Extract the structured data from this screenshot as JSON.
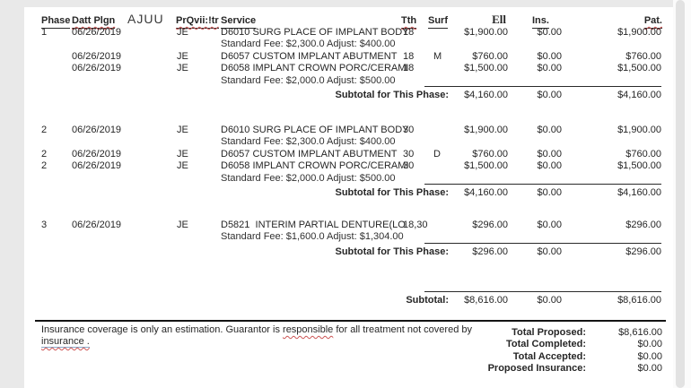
{
  "colors": {
    "page_background": "#ffffff",
    "canvas_background": "#e9e9e9",
    "spellcheck_squiggle": "#cc5555",
    "link_underline": "#8aa8c8"
  },
  "header": {
    "phase": "Phase",
    "date": "Datt Plgn",
    "extra": "AJUU",
    "provider": "PrQvii:!tr",
    "service": "Service",
    "tooth": "Tth",
    "surf": "Surf",
    "fee": "Ell",
    "ins": "Ins.",
    "pat": "Pat."
  },
  "phases": [
    {
      "rows": [
        {
          "phase": "1",
          "date": "06/26/2019",
          "provider": "JE",
          "service": "D6010 SURG PLACE OF IMPLANT BODY",
          "tooth": "18",
          "surf": "",
          "fee": "$1,900.00",
          "ins": "$0.00",
          "pat": "$1,900.00",
          "note": "Standard Fee: $2,300.0 Adjust: $400.00"
        },
        {
          "phase": "",
          "date": "06/26/2019",
          "provider": "JE",
          "service": "D6057 CUSTOM IMPLANT ABUTMENT",
          "tooth": "18",
          "surf": "M",
          "fee": "$760.00",
          "ins": "$0.00",
          "pat": "$760.00",
          "note": ""
        },
        {
          "phase": "",
          "date": "06/26/2019",
          "provider": "JE",
          "service": "D6058 IMPLANT CROWN PORC/CERAMI",
          "tooth": "18",
          "surf": "",
          "fee": "$1,500.00",
          "ins": "$0.00",
          "pat": "$1,500.00",
          "note": "Standard Fee: $2,000.0 Adjust: $500.00"
        }
      ],
      "subtotal": {
        "label": "Subtotal for This Phase:",
        "fee": "$4,160.00",
        "ins": "$0.00",
        "pat": "$4,160.00"
      }
    },
    {
      "rows": [
        {
          "phase": "2",
          "date": "06/26/2019",
          "provider": "JE",
          "service": "D6010 SURG PLACE OF IMPLANT BODY",
          "tooth": "30",
          "surf": "",
          "fee": "$1,900.00",
          "ins": "$0.00",
          "pat": "$1,900.00",
          "note": "Standard Fee: $2,300.0 Adjust: $400.00"
        },
        {
          "phase": "2",
          "date": "06/26/2019",
          "provider": "JE",
          "service": "D6057 CUSTOM IMPLANT ABUTMENT",
          "tooth": "30",
          "surf": "D",
          "fee": "$760.00",
          "ins": "$0.00",
          "pat": "$760.00",
          "note": ""
        },
        {
          "phase": "2",
          "date": "06/26/2019",
          "provider": "JE",
          "service": "D6058 IMPLANT CROWN PORC/CERAMI",
          "tooth": "30",
          "surf": "",
          "fee": "$1,500.00",
          "ins": "$0.00",
          "pat": "$1,500.00",
          "note": "Standard Fee: $2,000.0 Adjust: $500.00"
        }
      ],
      "subtotal": {
        "label": "Subtotal for This Phase:",
        "fee": "$4,160.00",
        "ins": "$0.00",
        "pat": "$4,160.00"
      }
    },
    {
      "rows": [
        {
          "phase": "3",
          "date": "06/26/2019",
          "provider": "JE",
          "service": "D5821  INTERIM PARTIAL DENTURE(LO",
          "tooth": "18,30",
          "surf": "",
          "fee": "$296.00",
          "ins": "$0.00",
          "pat": "$296.00",
          "note": "Standard Fee: $1,600.0 Adjust: $1,304.00"
        }
      ],
      "subtotal": {
        "label": "Subtotal for This Phase:",
        "fee": "$296.00",
        "ins": "$0.00",
        "pat": "$296.00"
      }
    }
  ],
  "grand_subtotal": {
    "label": "Subtotal:",
    "fee": "$8,616.00",
    "ins": "$0.00",
    "pat": "$8,616.00"
  },
  "disclaimer": {
    "line1_before": "Insurance coverage is only an estimation. Guarantor is ",
    "misspelled_word": "responsible",
    "line1_after": " for all treatment not covered by",
    "line2_link": "insurance ."
  },
  "totals": [
    {
      "label": "Total Proposed:",
      "value": "$8,616.00"
    },
    {
      "label": "Total Completed:",
      "value": "$0.00"
    },
    {
      "label": "Total Accepted:",
      "value": "$0.00"
    },
    {
      "label": "Proposed Insurance:",
      "value": "$0.00"
    }
  ]
}
